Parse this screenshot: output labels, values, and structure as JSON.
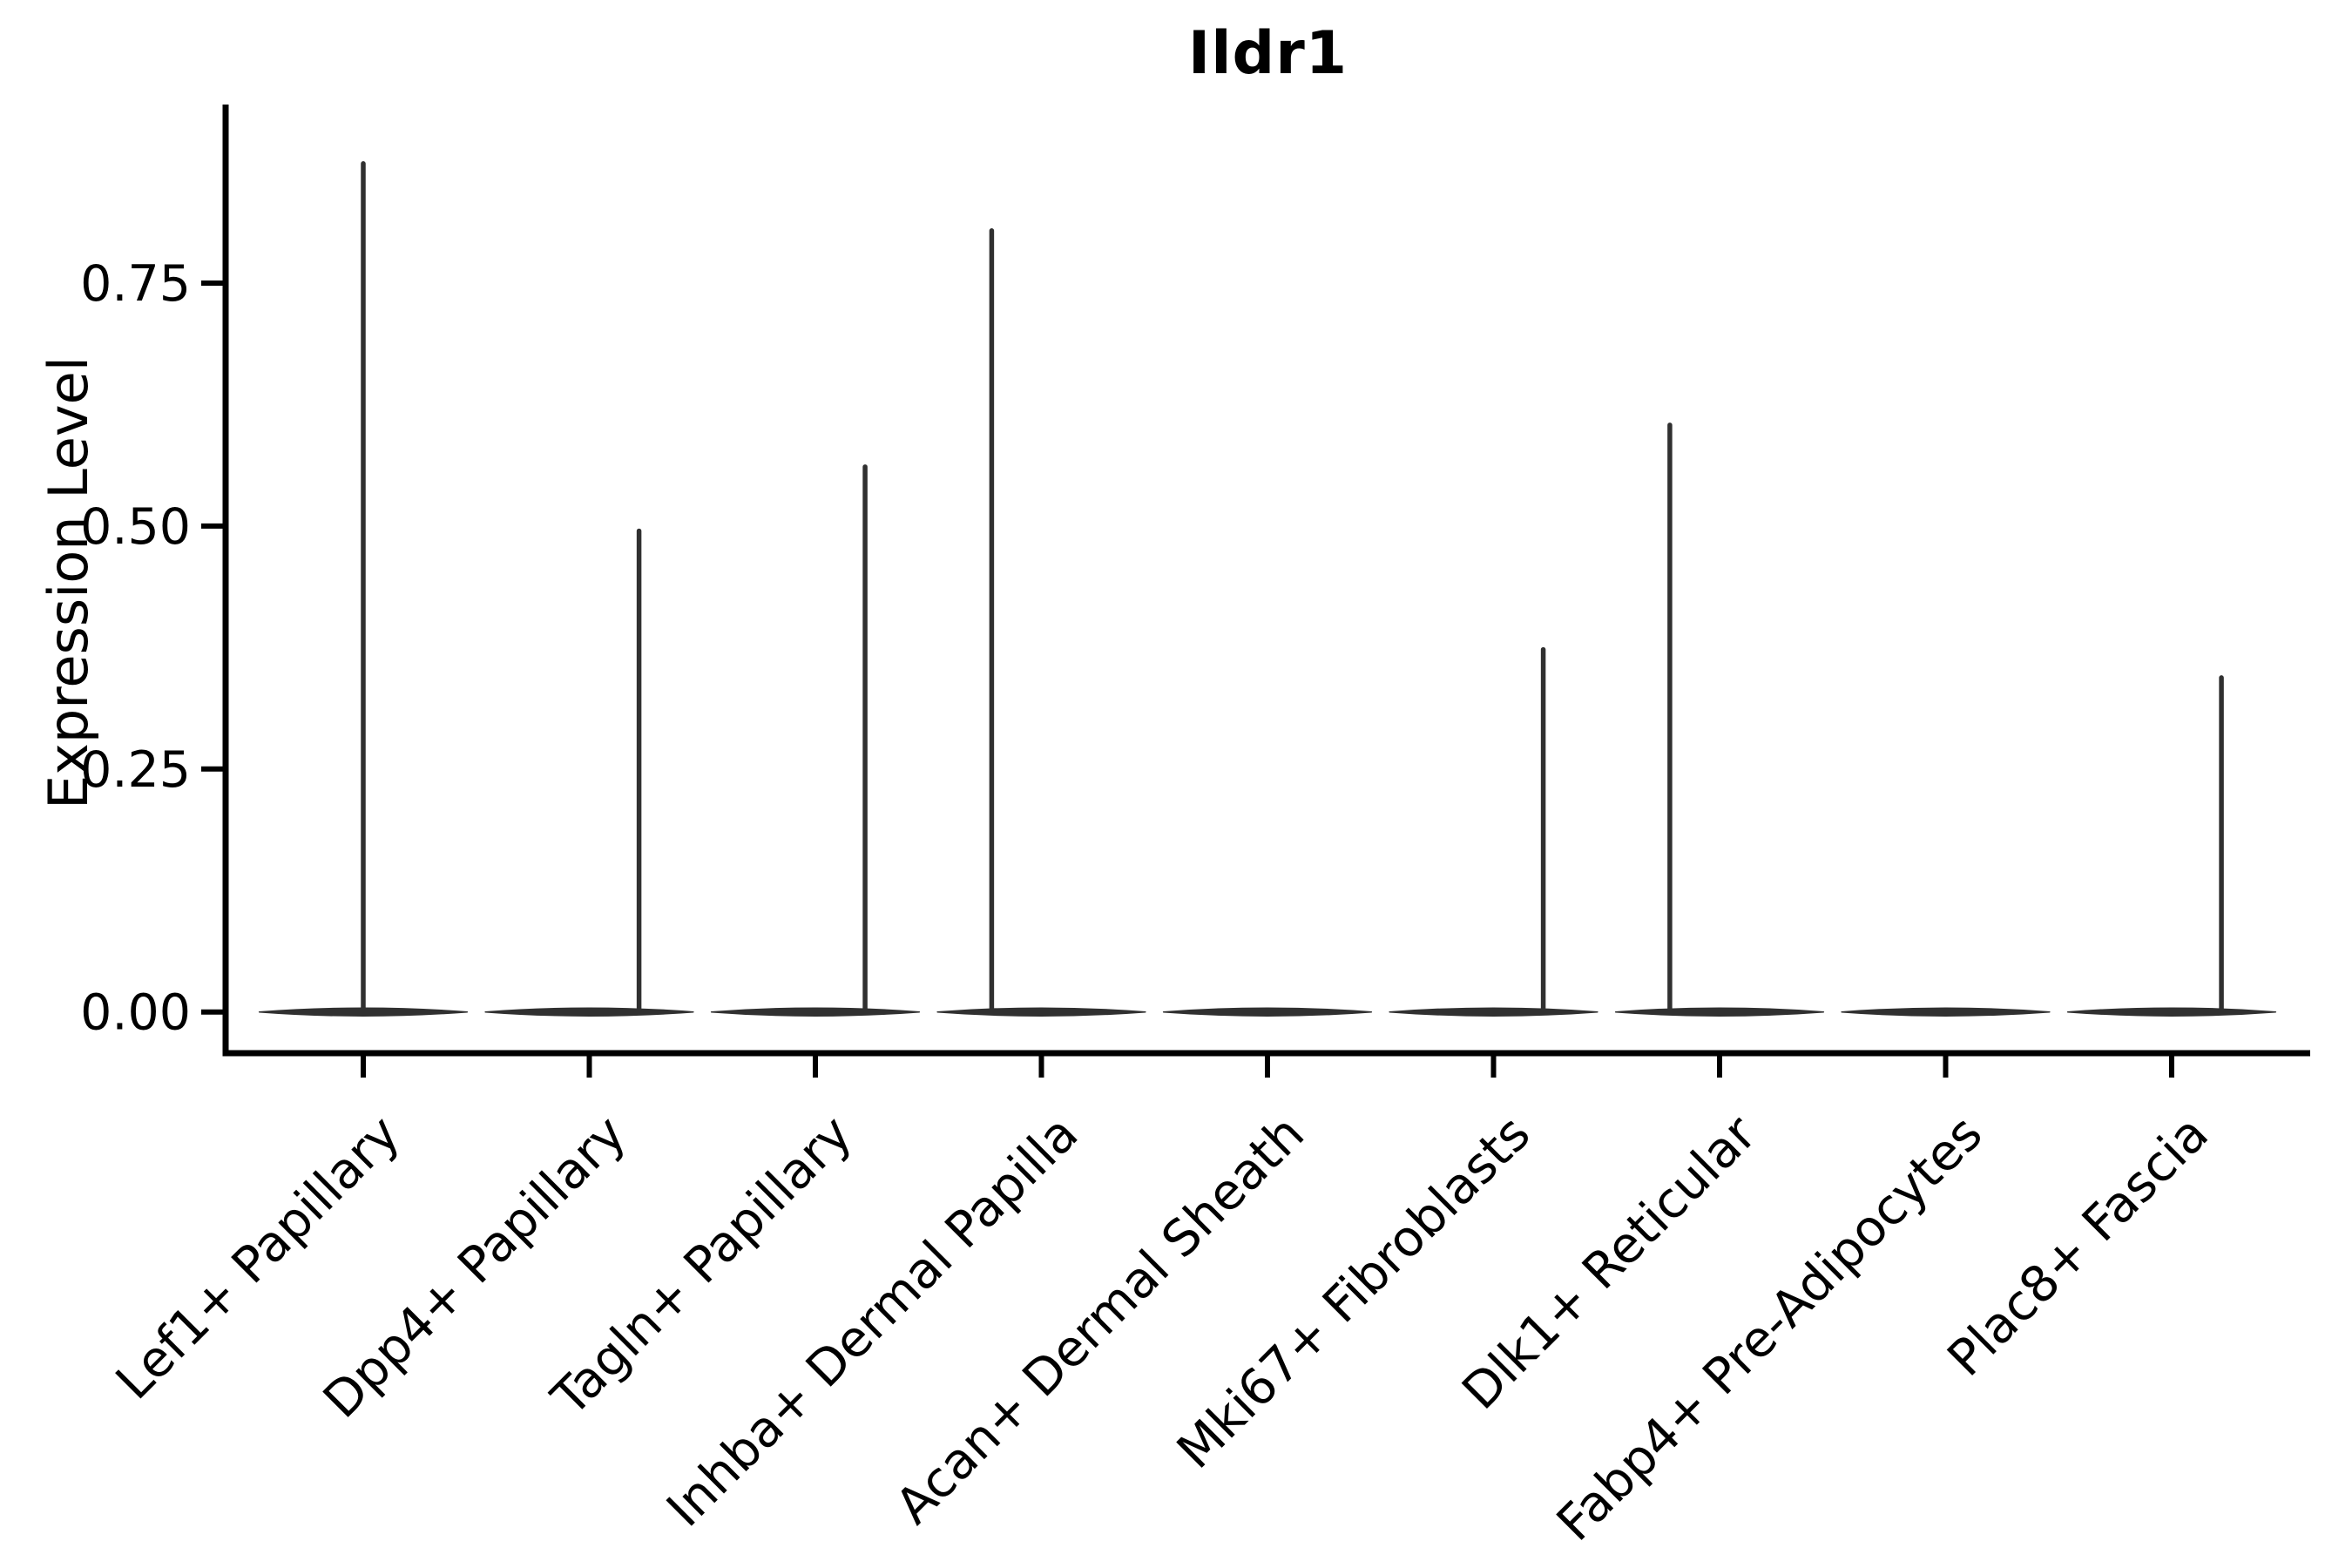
{
  "title": "Ildr1",
  "chart_data": {
    "type": "violin",
    "title": "Ildr1",
    "ylabel": "Expression Level",
    "xlabel": "",
    "grid": false,
    "legend": "none",
    "background": "#ffffff",
    "violin_color": "#303030",
    "axis_color": "#000000",
    "text_color": "#000000",
    "ylim": [
      -0.043,
      0.934
    ],
    "ytick_values": [
      0.0,
      0.25,
      0.5,
      0.75
    ],
    "ytick_labels": [
      "0.00",
      "0.25",
      "0.50",
      "0.75"
    ],
    "categories": [
      "Lef1+ Papillary",
      "Dpp4+ Papillary",
      "Tagln+ Papillary",
      "Inhba+ Dermal Papilla",
      "Acan+ Dermal Sheath",
      "Mki67+ Fibroblasts",
      "Dlk1+ Reticular",
      "Fabp4+ Pre-Adipocytes",
      "Plac8+ Fascia"
    ],
    "series": [
      {
        "name": "Lef1+ Papillary",
        "max_expression": 0.873,
        "bulk_at": 0.0,
        "spike_offset_frac": 0.0,
        "body_width_frac": 0.92
      },
      {
        "name": "Dpp4+ Papillary",
        "max_expression": 0.495,
        "bulk_at": 0.0,
        "spike_offset_frac": 0.22,
        "body_width_frac": 0.92
      },
      {
        "name": "Tagln+ Papillary",
        "max_expression": 0.561,
        "bulk_at": 0.0,
        "spike_offset_frac": 0.22,
        "body_width_frac": 0.92
      },
      {
        "name": "Inhba+ Dermal Papilla",
        "max_expression": 0.804,
        "bulk_at": 0.0,
        "spike_offset_frac": -0.22,
        "body_width_frac": 0.92
      },
      {
        "name": "Acan+ Dermal Sheath",
        "max_expression": 0.0,
        "bulk_at": 0.0,
        "spike_offset_frac": 0.0,
        "body_width_frac": 0.92
      },
      {
        "name": "Mki67+ Fibroblasts",
        "max_expression": 0.373,
        "bulk_at": 0.0,
        "spike_offset_frac": 0.22,
        "body_width_frac": 0.92
      },
      {
        "name": "Dlk1+ Reticular",
        "max_expression": 0.604,
        "bulk_at": 0.0,
        "spike_offset_frac": -0.22,
        "body_width_frac": 0.92
      },
      {
        "name": "Fabp4+ Pre-Adipocytes",
        "max_expression": 0.0,
        "bulk_at": 0.0,
        "spike_offset_frac": 0.0,
        "body_width_frac": 0.92
      },
      {
        "name": "Plac8+ Fascia",
        "max_expression": 0.344,
        "bulk_at": 0.0,
        "spike_offset_frac": 0.22,
        "body_width_frac": 0.92
      }
    ]
  }
}
